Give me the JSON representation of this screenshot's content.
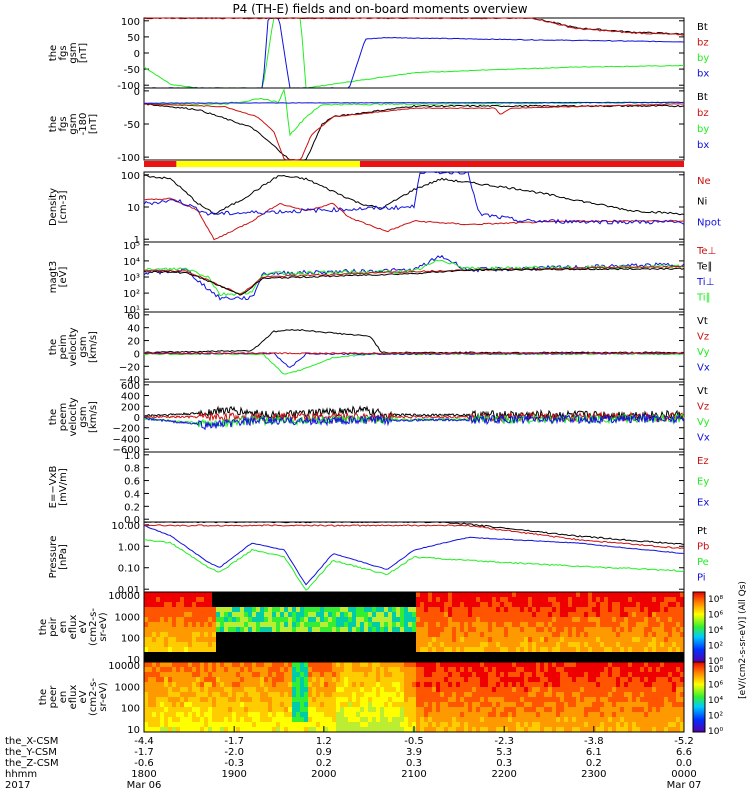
{
  "title": "P4 (TH-E) fields and on-board moments overview",
  "colors": {
    "black": "#000000",
    "red": "#cc1111",
    "green": "#22ee22",
    "blue": "#1111dd",
    "yellow": "#ffff00",
    "barred": "#ee1111"
  },
  "chart_data": [
    {
      "id": "fgs",
      "type": "line",
      "ylabel": [
        "the",
        "fgs",
        "gsm",
        "[nT]"
      ],
      "yticks": [
        "100",
        "50",
        "0",
        "-50",
        "-100"
      ],
      "ylim": [
        -100,
        100
      ],
      "legend": [
        {
          "label": "Bt",
          "color": "black"
        },
        {
          "label": "bz",
          "color": "red"
        },
        {
          "label": "by",
          "color": "green"
        },
        {
          "label": "bx",
          "color": "blue"
        }
      ]
    },
    {
      "id": "fgs_eclipse",
      "type": "line",
      "ylabel": [
        "the",
        "fgs",
        "gsm",
        "-180",
        "[nT]"
      ],
      "yticks": [
        "0",
        "-50",
        "-100"
      ],
      "ylim": [
        -130,
        30
      ],
      "legend": [
        {
          "label": "Bt",
          "color": "black"
        },
        {
          "label": "bz",
          "color": "red"
        },
        {
          "label": "by",
          "color": "green"
        },
        {
          "label": "bx",
          "color": "blue"
        }
      ],
      "mode_bar": [
        {
          "from": 0.0,
          "to": 0.06,
          "color": "barred"
        },
        {
          "from": 0.06,
          "to": 0.4,
          "color": "yellow"
        },
        {
          "from": 0.4,
          "to": 1.0,
          "color": "barred"
        }
      ]
    },
    {
      "id": "density",
      "type": "line",
      "scale": "log",
      "ylabel": [
        "Density",
        "[cm-3]"
      ],
      "yticks": [
        "100",
        "10",
        "1"
      ],
      "legend": [
        {
          "label": "Ne",
          "color": "red"
        },
        {
          "label": "Ni",
          "color": "black"
        },
        {
          "label": "Npot",
          "color": "blue"
        }
      ]
    },
    {
      "id": "temp",
      "type": "line",
      "scale": "log",
      "ylabel": [
        "magt3",
        "[eV]"
      ],
      "yticks": [
        "10⁵",
        "10⁴",
        "10³",
        "10²",
        "10¹"
      ],
      "legend": [
        {
          "label": "Te⊥",
          "color": "red"
        },
        {
          "label": "Te∥",
          "color": "black"
        },
        {
          "label": "Ti⊥",
          "color": "blue"
        },
        {
          "label": "Ti∥",
          "color": "green"
        }
      ]
    },
    {
      "id": "peim_vel",
      "type": "line",
      "ylabel": [
        "the",
        "peim",
        "velocity",
        "gsm",
        "[km/s]"
      ],
      "yticks": [
        "60",
        "40",
        "20",
        "0",
        "−20",
        "−40"
      ],
      "ylim": [
        -45,
        65
      ],
      "legend": [
        {
          "label": "Vt",
          "color": "black"
        },
        {
          "label": "Vz",
          "color": "red"
        },
        {
          "label": "Vy",
          "color": "green"
        },
        {
          "label": "Vx",
          "color": "blue"
        }
      ]
    },
    {
      "id": "peem_vel",
      "type": "line",
      "ylabel": [
        "the",
        "peem",
        "velocity",
        "gsm",
        "[km/s]"
      ],
      "yticks": [
        "600",
        "400",
        "200",
        "0",
        "−200",
        "−400",
        "−600"
      ],
      "ylim": [
        -650,
        650
      ],
      "legend": [
        {
          "label": "Vt",
          "color": "black"
        },
        {
          "label": "Vz",
          "color": "red"
        },
        {
          "label": "Vy",
          "color": "green"
        },
        {
          "label": "Vx",
          "color": "blue"
        }
      ]
    },
    {
      "id": "efield",
      "type": "line",
      "ylabel": [
        "E=−VxB",
        "[mV/m]"
      ],
      "yticks": [
        "1.0",
        "0.8",
        "0.6",
        "0.4",
        "0.2",
        "0.0"
      ],
      "ylim": [
        0,
        1
      ],
      "legend": [
        {
          "label": "Ez",
          "color": "red"
        },
        {
          "label": "Ey",
          "color": "green"
        },
        {
          "label": "Ex",
          "color": "blue"
        }
      ]
    },
    {
      "id": "pressure",
      "type": "line",
      "scale": "log",
      "ylabel": [
        "Pressure",
        "[nPa]"
      ],
      "yticks": [
        "10.00",
        "1.00",
        "0.10",
        "0.01"
      ],
      "legend": [
        {
          "label": "Pt",
          "color": "black"
        },
        {
          "label": "Pb",
          "color": "red"
        },
        {
          "label": "Pe",
          "color": "green"
        },
        {
          "label": "Pi",
          "color": "blue"
        }
      ]
    },
    {
      "id": "peir",
      "type": "heatmap",
      "ylabel": [
        "the",
        "peir",
        "en",
        "eflux",
        "eV",
        "(cm2-s-",
        "sr-eV)"
      ],
      "yticks": [
        "10000",
        "1000",
        "100",
        "10"
      ]
    },
    {
      "id": "peer",
      "type": "heatmap",
      "ylabel": [
        "the",
        "peer",
        "en",
        "eflux",
        "eV",
        "(cm2-s-",
        "sr-eV)"
      ],
      "yticks": [
        "10000",
        "1000",
        "100",
        "10"
      ]
    }
  ],
  "colorbar": {
    "ticks": [
      "10⁸",
      "10⁶",
      "10⁴",
      "10²",
      "10⁰"
    ],
    "label": "[eV/(cm2-s-sr-eV)] (All Qs)",
    "label2": "[eV/(cm2-s-sr-eV)]"
  },
  "xaxis": {
    "row_labels": [
      "the_X-CSM",
      "the_Y-CSM",
      "the_Z-CSM",
      "hhmm",
      "2017"
    ],
    "ticks": [
      {
        "pos": 0.0,
        "v": [
          "-4.4",
          "-1.7",
          "-0.6",
          "1800",
          "Mar 06"
        ]
      },
      {
        "pos": 0.167,
        "v": [
          "-1.7",
          "-2.0",
          "-0.3",
          "1900",
          ""
        ]
      },
      {
        "pos": 0.333,
        "v": [
          "1.2",
          "0.9",
          "0.2",
          "2000",
          ""
        ]
      },
      {
        "pos": 0.5,
        "v": [
          "-0.5",
          "3.9",
          "0.3",
          "2100",
          ""
        ]
      },
      {
        "pos": 0.667,
        "v": [
          "-2.3",
          "5.3",
          "0.3",
          "2200",
          ""
        ]
      },
      {
        "pos": 0.833,
        "v": [
          "-3.8",
          "6.1",
          "0.2",
          "2300",
          ""
        ]
      },
      {
        "pos": 1.0,
        "v": [
          "-5.2",
          "6.6",
          "0.0",
          "0000",
          "Mar 07"
        ]
      }
    ]
  }
}
